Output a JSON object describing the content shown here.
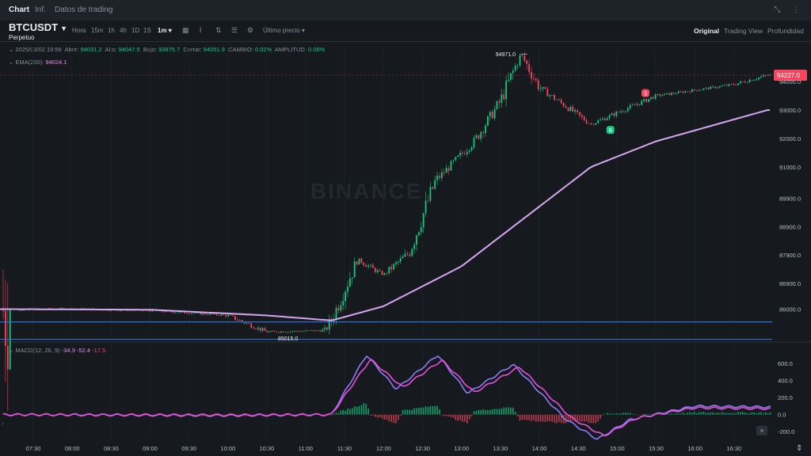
{
  "tabs": [
    "Chart",
    "Inf.",
    "Datos de trading"
  ],
  "window_icons": [
    "collapse-icon",
    "more-icon"
  ],
  "symbol": {
    "name": "BTCUSDT",
    "type": "Perpetuo"
  },
  "timeframes": [
    "Hora",
    "15m",
    "1h",
    "4h",
    "1D",
    "1S",
    "1m ▾"
  ],
  "toolbar_icons": [
    "calendar-icon",
    "indicator-icon",
    "compare-icon",
    "template-icon",
    "settings-icon"
  ],
  "price_source": "Último precio ▾",
  "views": [
    "Original",
    "Trading View",
    "Profundidad"
  ],
  "ohlc": {
    "datetime": "2025/03/02 19:56",
    "open_label": "Abrir:",
    "open": "94031.2",
    "high_label": "Alto:",
    "high": "94047.5",
    "low_label": "Bajo:",
    "low": "93975.7",
    "close_label": "Cerrar:",
    "close": "94051.9",
    "change_label": "CAMBIO:",
    "change": "0.02%",
    "amp_label": "AMPLITUD:",
    "amp": "0.08%"
  },
  "ema": {
    "label": "EMA(200):",
    "value": "94024.1"
  },
  "macd": {
    "label": "MACD(12, 26, 9)",
    "v1": "-34.9",
    "v2": "-52.4",
    "v3": "-17.5"
  },
  "watermark": "BINANCE",
  "markers": {
    "high_label": "94971.0",
    "low_label": "85015.0",
    "buy": "B",
    "sell": "S",
    "last_price": "94227.0"
  },
  "colors": {
    "up": "#0ecb81",
    "down": "#f6465d",
    "ema": "#d6a6f0",
    "macd": "#8b7cf6",
    "signal": "#e84fd9",
    "hline": "#2f6fd6"
  },
  "chart_data": [
    {
      "type": "candlestick",
      "series": [
        {
          "name": "EMA(200)"
        }
      ],
      "x_ticks": [
        "07:30",
        "08:00",
        "08:30",
        "09:00",
        "09:30",
        "10:00",
        "10:30",
        "11:00",
        "11:30",
        "12:00",
        "12:30",
        "13:00",
        "13:30",
        "14:00",
        "14:30",
        "15:00",
        "15:30",
        "16:00",
        "16:30"
      ],
      "y_ticks": [
        "94227.0",
        "94000.0",
        "93000.0",
        "92000.0",
        "91000.0",
        "89900.0",
        "88900.0",
        "87900.0",
        "86900.0",
        "86000.0"
      ],
      "ylim": [
        84900,
        95200
      ],
      "horizontal_lines": [
        85550,
        84940
      ],
      "key_points": [
        {
          "x": "07:07",
          "y": 85990
        },
        {
          "x": "08:00",
          "y": 86010
        },
        {
          "x": "09:00",
          "y": 85950
        },
        {
          "x": "10:00",
          "y": 85780
        },
        {
          "x": "10:30",
          "y": 85200
        },
        {
          "x": "11:15",
          "y": 85250
        },
        {
          "x": "11:20",
          "y": 85600
        },
        {
          "x": "11:40",
          "y": 87750
        },
        {
          "x": "12:00",
          "y": 87200
        },
        {
          "x": "12:20",
          "y": 88000
        },
        {
          "x": "12:40",
          "y": 90500
        },
        {
          "x": "13:10",
          "y": 91900
        },
        {
          "x": "13:30",
          "y": 93300
        },
        {
          "x": "13:46",
          "y": 94971
        },
        {
          "x": "14:00",
          "y": 93800
        },
        {
          "x": "14:40",
          "y": 92500
        },
        {
          "x": "15:00",
          "y": 92900
        },
        {
          "x": "15:30",
          "y": 93500
        },
        {
          "x": "16:30",
          "y": 93900
        },
        {
          "x": "16:56",
          "y": 94227
        }
      ],
      "ema_points": [
        {
          "x": "07:07",
          "y": 86000
        },
        {
          "x": "09:00",
          "y": 85980
        },
        {
          "x": "10:30",
          "y": 85780
        },
        {
          "x": "11:20",
          "y": 85600
        },
        {
          "x": "12:00",
          "y": 86100
        },
        {
          "x": "13:00",
          "y": 87500
        },
        {
          "x": "14:00",
          "y": 89600
        },
        {
          "x": "14:40",
          "y": 91000
        },
        {
          "x": "15:30",
          "y": 91900
        },
        {
          "x": "16:56",
          "y": 93000
        }
      ]
    },
    {
      "type": "line",
      "series": [
        {
          "name": "MACD"
        },
        {
          "name": "Signal"
        }
      ],
      "y_ticks": [
        "600.0",
        "400.0",
        "200.0",
        "0.0",
        "-200.0"
      ],
      "ylim": [
        -300,
        760
      ],
      "macd_points": [
        {
          "x": "07:07",
          "y": 0
        },
        {
          "x": "10:00",
          "y": -10
        },
        {
          "x": "11:20",
          "y": 0
        },
        {
          "x": "11:47",
          "y": 700
        },
        {
          "x": "12:10",
          "y": 300
        },
        {
          "x": "12:42",
          "y": 700
        },
        {
          "x": "13:05",
          "y": 250
        },
        {
          "x": "13:40",
          "y": 590
        },
        {
          "x": "14:20",
          "y": -50
        },
        {
          "x": "14:45",
          "y": -290
        },
        {
          "x": "15:10",
          "y": -60
        },
        {
          "x": "16:00",
          "y": 100
        },
        {
          "x": "16:56",
          "y": 90
        }
      ],
      "signal_points": [
        {
          "x": "07:07",
          "y": 0
        },
        {
          "x": "10:00",
          "y": -5
        },
        {
          "x": "11:20",
          "y": 0
        },
        {
          "x": "11:50",
          "y": 650
        },
        {
          "x": "12:15",
          "y": 320
        },
        {
          "x": "12:45",
          "y": 640
        },
        {
          "x": "13:10",
          "y": 260
        },
        {
          "x": "13:45",
          "y": 560
        },
        {
          "x": "14:25",
          "y": -40
        },
        {
          "x": "14:50",
          "y": -250
        },
        {
          "x": "15:15",
          "y": -40
        },
        {
          "x": "16:00",
          "y": 80
        },
        {
          "x": "16:56",
          "y": 70
        }
      ]
    }
  ]
}
